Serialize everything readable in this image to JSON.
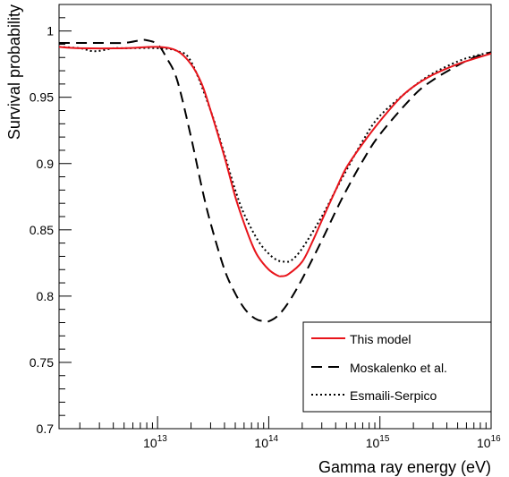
{
  "chart_data": {
    "type": "line",
    "xlabel": "Gamma ray energy (eV)",
    "ylabel": "Survival probability",
    "xscale": "log",
    "xlim": [
      1300000000000.0,
      1e+16
    ],
    "ylim": [
      0.7,
      1.02
    ],
    "grid": false,
    "legend_position": "bottom-right",
    "x_tick_labels": [
      {
        "value": 10000000000000.0,
        "mantissa": "10",
        "exponent": "13"
      },
      {
        "value": 100000000000000.0,
        "mantissa": "10",
        "exponent": "14"
      },
      {
        "value": 1000000000000000.0,
        "mantissa": "10",
        "exponent": "15"
      },
      {
        "value": 1e+16,
        "mantissa": "10",
        "exponent": "16"
      }
    ],
    "y_tick_labels": [
      {
        "value": 0.7,
        "label": "0.7"
      },
      {
        "value": 0.75,
        "label": "0.75"
      },
      {
        "value": 0.8,
        "label": "0.8"
      },
      {
        "value": 0.85,
        "label": "0.85"
      },
      {
        "value": 0.9,
        "label": "0.9"
      },
      {
        "value": 0.95,
        "label": "0.95"
      },
      {
        "value": 1.0,
        "label": "1"
      }
    ],
    "series": [
      {
        "name": "This model",
        "color": "#e8141b",
        "dash": "solid",
        "x": [
          1300000000000.0,
          2000000000000.0,
          5000000000000.0,
          10000000000000.0,
          15000000000000.0,
          20000000000000.0,
          25000000000000.0,
          30000000000000.0,
          40000000000000.0,
          50000000000000.0,
          60000000000000.0,
          70000000000000.0,
          80000000000000.0,
          100000000000000.0,
          120000000000000.0,
          130000000000000.0,
          150000000000000.0,
          200000000000000.0,
          250000000000000.0,
          300000000000000.0,
          400000000000000.0,
          500000000000000.0,
          700000000000000.0,
          1000000000000000.0,
          1500000000000000.0,
          2000000000000000.0,
          3000000000000000.0,
          5000000000000000.0,
          7000000000000000.0,
          1e+16
        ],
        "y": [
          0.988,
          0.987,
          0.987,
          0.988,
          0.985,
          0.975,
          0.96,
          0.94,
          0.905,
          0.875,
          0.855,
          0.84,
          0.83,
          0.82,
          0.8155,
          0.815,
          0.8165,
          0.826,
          0.842,
          0.857,
          0.88,
          0.897,
          0.915,
          0.932,
          0.949,
          0.958,
          0.967,
          0.975,
          0.979,
          0.983
        ]
      },
      {
        "name": "Moskalenko et al.",
        "color": "#000000",
        "dash": "long-dash",
        "x": [
          1300000000000.0,
          2000000000000.0,
          3000000000000.0,
          5000000000000.0,
          7000000000000.0,
          8000000000000.0,
          10000000000000.0,
          12000000000000.0,
          15000000000000.0,
          20000000000000.0,
          25000000000000.0,
          30000000000000.0,
          40000000000000.0,
          50000000000000.0,
          60000000000000.0,
          70000000000000.0,
          80000000000000.0,
          90000000000000.0,
          100000000000000.0,
          120000000000000.0,
          150000000000000.0,
          200000000000000.0,
          300000000000000.0,
          400000000000000.0,
          500000000000000.0,
          700000000000000.0,
          1000000000000000.0,
          2000000000000000.0,
          3000000000000000.0,
          5000000000000000.0,
          7000000000000000.0,
          1e+16
        ],
        "y": [
          0.991,
          0.991,
          0.991,
          0.991,
          0.993,
          0.993,
          0.99,
          0.98,
          0.963,
          0.92,
          0.882,
          0.855,
          0.82,
          0.802,
          0.791,
          0.785,
          0.782,
          0.7812,
          0.781,
          0.785,
          0.795,
          0.813,
          0.842,
          0.864,
          0.88,
          0.902,
          0.922,
          0.951,
          0.963,
          0.974,
          0.98,
          0.984
        ]
      },
      {
        "name": "Esmaili-Serpico",
        "color": "#000000",
        "dash": "dotted",
        "x": [
          1300000000000.0,
          2000000000000.0,
          2500000000000.0,
          3000000000000.0,
          4000000000000.0,
          5000000000000.0,
          10000000000000.0,
          15000000000000.0,
          20000000000000.0,
          30000000000000.0,
          40000000000000.0,
          50000000000000.0,
          60000000000000.0,
          80000000000000.0,
          100000000000000.0,
          120000000000000.0,
          140000000000000.0,
          160000000000000.0,
          200000000000000.0,
          300000000000000.0,
          400000000000000.0,
          500000000000000.0,
          700000000000000.0,
          1000000000000000.0,
          2000000000000000.0,
          3000000000000000.0,
          5000000000000000.0,
          7000000000000000.0,
          1e+16
        ],
        "y": [
          0.988,
          0.987,
          0.985,
          0.985,
          0.987,
          0.987,
          0.987,
          0.985,
          0.977,
          0.94,
          0.907,
          0.88,
          0.862,
          0.842,
          0.832,
          0.827,
          0.826,
          0.827,
          0.836,
          0.86,
          0.88,
          0.895,
          0.917,
          0.936,
          0.958,
          0.968,
          0.977,
          0.981,
          0.984
        ]
      }
    ]
  }
}
